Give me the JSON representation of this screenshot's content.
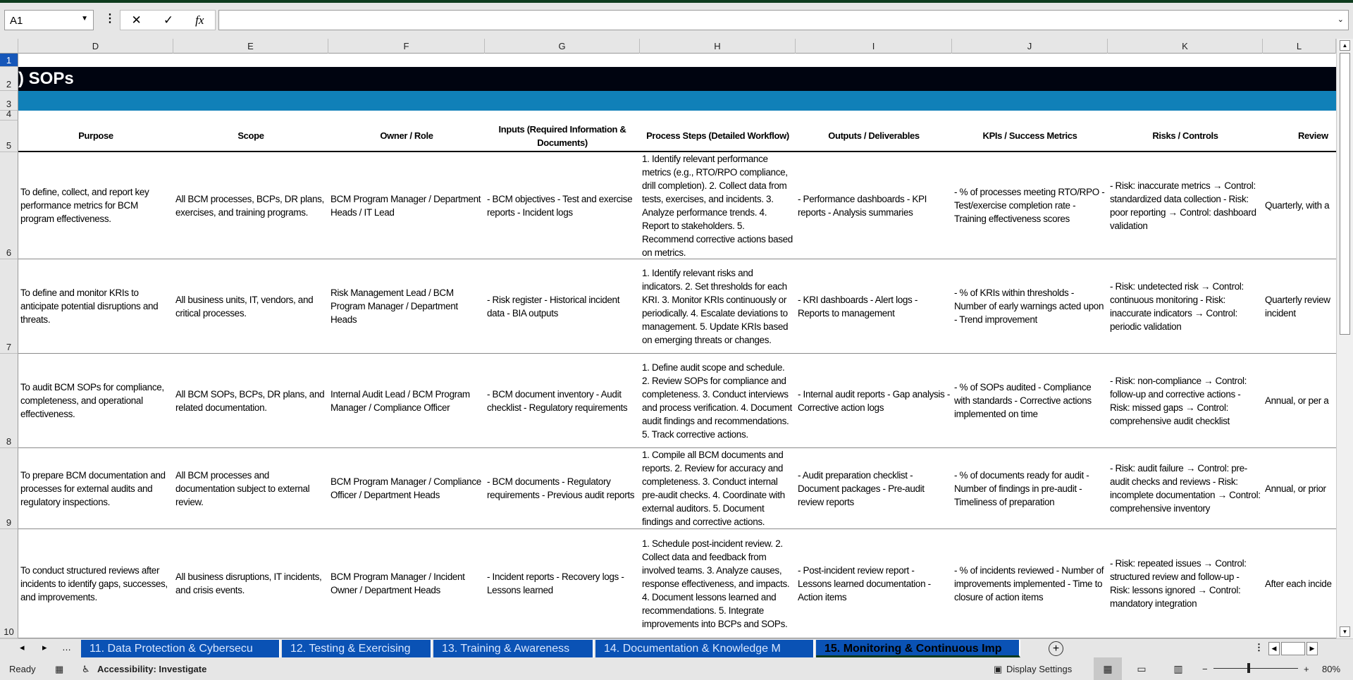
{
  "formula_bar": {
    "name_box": "A1",
    "cancel_icon": "✕",
    "enter_icon": "✓",
    "fx_label": "fx",
    "formula": ""
  },
  "columns": [
    "D",
    "E",
    "F",
    "G",
    "H",
    "I",
    "J",
    "K",
    "L"
  ],
  "row_numbers": [
    "1",
    "2",
    "3",
    "4",
    "5",
    "6",
    "7",
    "8",
    "9",
    "10"
  ],
  "title": ") SOPs",
  "headers": [
    "Purpose",
    "Scope",
    "Owner / Role",
    "Inputs (Required Information & Documents)",
    "Process Steps (Detailed Workflow)",
    "Outputs / Deliverables",
    "KPIs / Success Metrics",
    "Risks / Controls",
    "Review"
  ],
  "rows": [
    [
      "To define, collect, and report key performance metrics for BCM program effectiveness.",
      "All BCM processes, BCPs, DR plans, exercises, and training programs.",
      "BCM Program Manager / Department Heads / IT Lead",
      "- BCM objectives - Test and exercise reports - Incident logs",
      "1. Identify relevant performance metrics (e.g., RTO/RPO compliance, drill completion). 2. Collect data from tests, exercises, and incidents. 3. Analyze performance trends. 4. Report to stakeholders. 5. Recommend corrective actions based on metrics.",
      "- Performance dashboards - KPI reports - Analysis summaries",
      "- % of processes meeting RTO/RPO - Test/exercise completion rate - Training effectiveness scores",
      "- Risk: inaccurate metrics → Control: standardized data collection - Risk: poor reporting → Control: dashboard validation",
      "Quarterly, with a"
    ],
    [
      "To define and monitor KRIs to anticipate potential disruptions and threats.",
      "All business units, IT, vendors, and critical processes.",
      "Risk Management Lead / BCM Program Manager / Department Heads",
      "- Risk register - Historical incident data - BIA outputs",
      "1. Identify relevant risks and indicators. 2. Set thresholds for each KRI. 3. Monitor KRIs continuously or periodically. 4. Escalate deviations to management. 5. Update KRIs based on emerging threats or changes.",
      "- KRI dashboards - Alert logs - Reports to management",
      "- % of KRIs within thresholds - Number of early warnings acted upon - Trend improvement",
      "- Risk: undetected risk → Control: continuous monitoring - Risk: inaccurate indicators → Control: periodic validation",
      "Quarterly review incident"
    ],
    [
      "To audit BCM SOPs for compliance, completeness, and operational effectiveness.",
      "All BCM SOPs, BCPs, DR plans, and related documentation.",
      "Internal Audit Lead / BCM Program Manager / Compliance Officer",
      "- BCM document inventory - Audit checklist - Regulatory requirements",
      "1. Define audit scope and schedule. 2. Review SOPs for compliance and completeness. 3. Conduct interviews and process verification. 4. Document audit findings and recommendations. 5. Track corrective actions.",
      "- Internal audit reports - Gap analysis - Corrective action logs",
      "- % of SOPs audited - Compliance with standards - Corrective actions implemented on time",
      "- Risk: non-compliance → Control: follow-up and corrective actions - Risk: missed gaps → Control: comprehensive audit checklist",
      "Annual, or per a"
    ],
    [
      "To prepare BCM documentation and processes for external audits and regulatory inspections.",
      "All BCM processes and documentation subject to external review.",
      "BCM Program Manager / Compliance Officer / Department Heads",
      "- BCM documents - Regulatory requirements - Previous audit reports",
      "1. Compile all BCM documents and reports. 2. Review for accuracy and completeness. 3. Conduct internal pre-audit checks. 4. Coordinate with external auditors. 5. Document findings and corrective actions.",
      "- Audit preparation checklist - Document packages - Pre-audit review reports",
      "- % of documents ready for audit - Number of findings in pre-audit - Timeliness of preparation",
      "- Risk: audit failure → Control: pre-audit checks and reviews - Risk: incomplete documentation → Control: comprehensive inventory",
      "Annual, or prior"
    ],
    [
      "To conduct structured reviews after incidents to identify gaps, successes, and improvements.",
      "All business disruptions, IT incidents, and crisis events.",
      "BCM Program Manager / Incident Owner / Department Heads",
      "- Incident reports - Recovery logs - Lessons learned",
      "1. Schedule post-incident review. 2. Collect data and feedback from involved teams. 3. Analyze causes, response effectiveness, and impacts. 4. Document lessons learned and recommendations. 5. Integrate improvements into BCPs and SOPs.",
      "- Post-incident review report - Lessons learned documentation - Action items",
      "- % of incidents reviewed - Number of improvements implemented - Time to closure of action items",
      "- Risk: repeated issues → Control: structured review and follow-up - Risk: lessons ignored → Control: mandatory integration",
      "After each incide"
    ]
  ],
  "sheet_tabs": [
    "11. Data Protection & Cybersecu",
    "12. Testing & Exercising",
    "13. Training & Awareness",
    "14. Documentation & Knowledge M",
    "15. Monitoring & Continuous Imp"
  ],
  "active_tab": 4,
  "status": {
    "ready": "Ready",
    "accessibility": "Accessibility: Investigate",
    "display_settings": "Display Settings",
    "zoom": "80%"
  },
  "colors": {
    "title_band": "#000410",
    "sub_band": "#1080b8",
    "tab": "#0a52b5",
    "active_row_header": "#1657b9"
  }
}
